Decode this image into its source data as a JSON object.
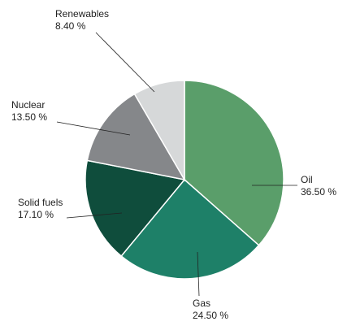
{
  "chart_data": {
    "type": "pie",
    "categories": [
      "Oil",
      "Gas",
      "Solid fuels",
      "Nuclear",
      "Renewables"
    ],
    "values": [
      36.5,
      24.5,
      17.1,
      13.5,
      8.4
    ],
    "value_labels": [
      "36.50 %",
      "24.50 %",
      "17.10 %",
      "13.50 %",
      "8.40 %"
    ],
    "colors": [
      "#5a9e6a",
      "#1e8068",
      "#0f4d3c",
      "#85878a",
      "#d6d8d9"
    ]
  }
}
